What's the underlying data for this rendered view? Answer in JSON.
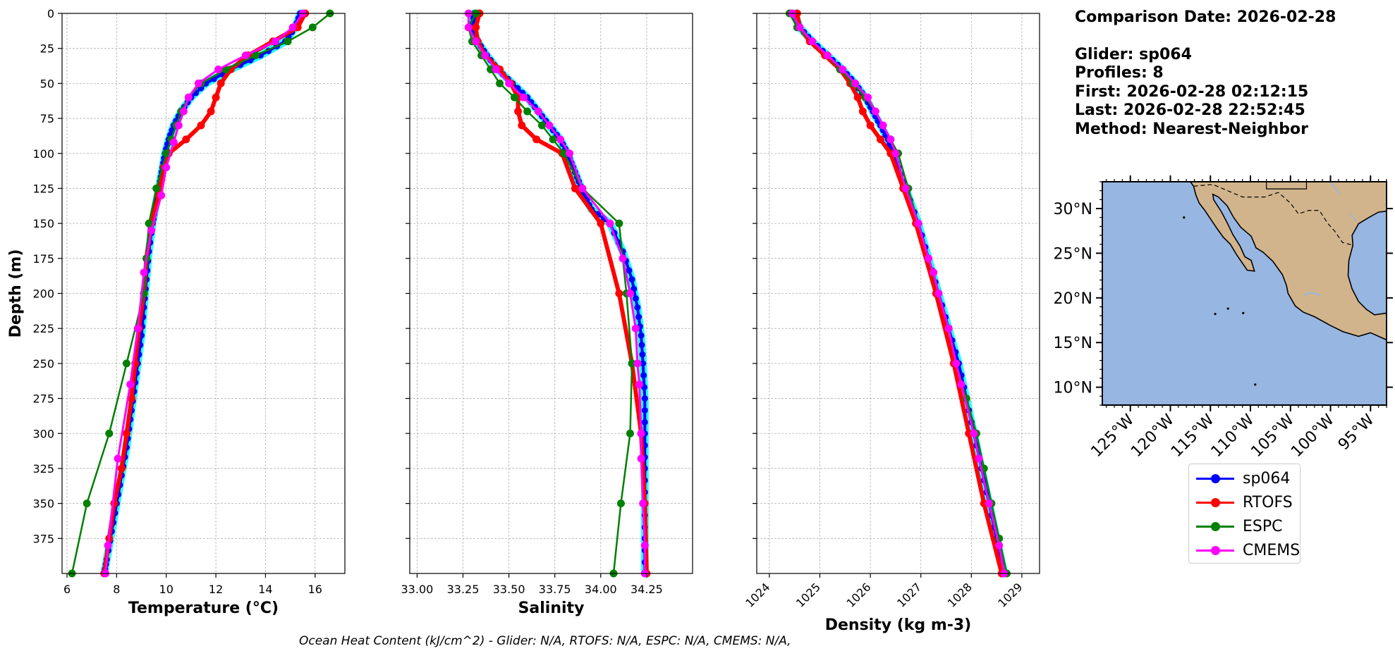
{
  "colors": {
    "sp064": "#0000ff",
    "sp064_light": "#00ffff",
    "RTOFS": "#ff0000",
    "ESPC": "#008000",
    "CMEMS": "#ff00ff",
    "land": "#d2b48c",
    "ocean": "#97b6e1",
    "grid": "#b0b0b0"
  },
  "info": {
    "comparison_date": "Comparison Date: 2026-02-28",
    "glider": "Glider: sp064",
    "profiles": "Profiles: 8",
    "first": "First: 2026-02-28 02:12:15",
    "last": "Last: 2026-02-28 22:52:45",
    "method": "Method: Nearest-Neighbor"
  },
  "legend": [
    {
      "label": "sp064",
      "color_key": "sp064"
    },
    {
      "label": "RTOFS",
      "color_key": "RTOFS"
    },
    {
      "label": "ESPC",
      "color_key": "ESPC"
    },
    {
      "label": "CMEMS",
      "color_key": "CMEMS"
    }
  ],
  "footer": "Ocean Heat Content (kJ/cm^2) - Glider: N/A,  RTOFS: N/A,  ESPC: N/A,  CMEMS: N/A,",
  "map": {
    "lat_ticks": [
      "30°N",
      "25°N",
      "20°N",
      "15°N",
      "10°N"
    ],
    "lon_ticks": [
      "125°W",
      "120°W",
      "115°W",
      "110°W",
      "105°W",
      "100°W",
      "95°W"
    ]
  },
  "chart_data": [
    {
      "type": "line",
      "id": "temperature",
      "xlabel": "Temperature (°C)",
      "ylabel": "Depth (m)",
      "xlim": [
        5.8,
        17.2
      ],
      "ylim": [
        400,
        0
      ],
      "xticks": [
        6,
        8,
        10,
        12,
        14,
        16
      ],
      "yticks": [
        0,
        25,
        50,
        75,
        100,
        125,
        150,
        175,
        200,
        225,
        250,
        275,
        300,
        325,
        350,
        375
      ],
      "series": [
        {
          "name": "sp064",
          "depth": [
            0,
            10,
            20,
            30,
            40,
            50,
            60,
            70,
            80,
            90,
            100,
            110,
            120,
            130,
            140,
            150,
            170,
            190,
            210,
            230,
            250,
            270,
            290,
            310,
            330,
            350,
            370,
            390,
            400
          ],
          "values": [
            15.4,
            15.2,
            14.8,
            13.8,
            12.6,
            11.6,
            11.0,
            10.6,
            10.3,
            10.1,
            9.95,
            9.85,
            9.75,
            9.65,
            9.55,
            9.45,
            9.3,
            9.2,
            9.1,
            9.0,
            8.85,
            8.7,
            8.55,
            8.4,
            8.2,
            8.0,
            7.8,
            7.6,
            7.5
          ]
        },
        {
          "name": "RTOFS",
          "depth": [
            0,
            10,
            20,
            30,
            40,
            50,
            60,
            70,
            80,
            90,
            100,
            110,
            130,
            150,
            175,
            200,
            225,
            250,
            275,
            300,
            325,
            350,
            375,
            400
          ],
          "values": [
            15.6,
            15.3,
            14.3,
            13.3,
            12.6,
            12.2,
            12.0,
            11.8,
            11.4,
            10.8,
            10.1,
            9.9,
            9.7,
            9.4,
            9.2,
            9.1,
            8.9,
            8.75,
            8.6,
            8.4,
            8.2,
            7.9,
            7.7,
            7.5
          ]
        },
        {
          "name": "ESPC",
          "depth": [
            0,
            10,
            20,
            30,
            40,
            50,
            60,
            70,
            80,
            90,
            100,
            125,
            150,
            175,
            200,
            250,
            300,
            350,
            400
          ],
          "values": [
            16.6,
            15.9,
            14.9,
            13.6,
            12.4,
            11.4,
            10.9,
            10.6,
            10.4,
            10.2,
            10.0,
            9.6,
            9.3,
            9.2,
            9.1,
            8.4,
            7.7,
            6.8,
            6.2
          ]
        },
        {
          "name": "CMEMS",
          "depth": [
            0,
            10,
            20,
            30,
            40,
            50,
            60,
            70,
            80,
            92,
            110,
            130,
            155,
            185,
            225,
            265,
            318,
            380,
            400
          ],
          "values": [
            15.5,
            15.1,
            14.4,
            13.2,
            12.1,
            11.3,
            10.9,
            10.7,
            10.5,
            10.3,
            10.0,
            9.8,
            9.4,
            9.1,
            8.85,
            8.55,
            8.05,
            7.65,
            7.55
          ]
        }
      ]
    },
    {
      "type": "line",
      "id": "salinity",
      "xlabel": "Salinity",
      "xlim": [
        32.96,
        34.5
      ],
      "ylim": [
        400,
        0
      ],
      "xticks": [
        33.0,
        33.25,
        33.5,
        33.75,
        34.0,
        34.25
      ],
      "xtick_labels": [
        "33.00",
        "33.25",
        "33.50",
        "33.75",
        "34.00",
        "34.25"
      ],
      "series": [
        {
          "name": "sp064",
          "depth": [
            0,
            10,
            20,
            30,
            40,
            50,
            60,
            70,
            80,
            90,
            100,
            110,
            120,
            130,
            140,
            150,
            170,
            190,
            210,
            230,
            250,
            275,
            300,
            325,
            350,
            375,
            400
          ],
          "values": [
            33.31,
            33.3,
            33.33,
            33.38,
            33.44,
            33.52,
            33.6,
            33.66,
            33.72,
            33.78,
            33.82,
            33.85,
            33.88,
            33.91,
            33.95,
            34.05,
            34.12,
            34.17,
            34.2,
            34.22,
            34.23,
            34.24,
            34.24,
            34.24,
            34.24,
            34.24,
            34.24
          ]
        },
        {
          "name": "RTOFS",
          "depth": [
            0,
            10,
            20,
            30,
            40,
            50,
            60,
            70,
            80,
            90,
            100,
            125,
            150,
            200,
            250,
            300,
            350,
            400
          ],
          "values": [
            33.34,
            33.32,
            33.33,
            33.37,
            33.45,
            33.51,
            33.55,
            33.55,
            33.57,
            33.65,
            33.79,
            33.86,
            34.0,
            34.1,
            34.17,
            34.22,
            34.24,
            34.25
          ]
        },
        {
          "name": "ESPC",
          "depth": [
            0,
            10,
            20,
            30,
            40,
            50,
            60,
            70,
            80,
            90,
            100,
            125,
            150,
            200,
            250,
            300,
            350,
            400
          ],
          "values": [
            33.32,
            33.28,
            33.3,
            33.35,
            33.4,
            33.45,
            33.53,
            33.6,
            33.68,
            33.74,
            33.8,
            33.9,
            34.1,
            34.14,
            34.17,
            34.16,
            34.11,
            34.07
          ]
        },
        {
          "name": "CMEMS",
          "depth": [
            0,
            10,
            20,
            30,
            40,
            50,
            60,
            70,
            80,
            90,
            100,
            125,
            150,
            175,
            200,
            225,
            250,
            265,
            300,
            318,
            350,
            380,
            400
          ],
          "values": [
            33.28,
            33.28,
            33.32,
            33.37,
            33.43,
            33.5,
            33.58,
            33.66,
            33.72,
            33.78,
            33.83,
            33.9,
            34.05,
            34.12,
            34.16,
            34.19,
            34.2,
            34.21,
            34.22,
            34.22,
            34.23,
            34.24,
            34.24
          ]
        }
      ]
    },
    {
      "type": "line",
      "id": "density",
      "xlabel": "Density (kg m-3)",
      "xlim": [
        1023.75,
        1029.35
      ],
      "ylim": [
        400,
        0
      ],
      "xticks": [
        1024,
        1025,
        1026,
        1027,
        1028,
        1029
      ],
      "series": [
        {
          "name": "sp064",
          "depth": [
            0,
            10,
            20,
            30,
            40,
            50,
            60,
            70,
            80,
            90,
            100,
            110,
            125,
            150,
            175,
            200,
            225,
            250,
            275,
            300,
            325,
            350,
            375,
            400
          ],
          "values": [
            1024.5,
            1024.6,
            1024.85,
            1025.15,
            1025.45,
            1025.7,
            1025.9,
            1026.05,
            1026.2,
            1026.35,
            1026.45,
            1026.55,
            1026.7,
            1026.95,
            1027.15,
            1027.35,
            1027.55,
            1027.75,
            1027.9,
            1028.05,
            1028.2,
            1028.35,
            1028.5,
            1028.65
          ]
        },
        {
          "name": "RTOFS",
          "depth": [
            0,
            10,
            20,
            30,
            40,
            50,
            60,
            70,
            80,
            90,
            100,
            125,
            150,
            200,
            250,
            300,
            350,
            400
          ],
          "values": [
            1024.55,
            1024.6,
            1024.8,
            1025.1,
            1025.4,
            1025.6,
            1025.75,
            1025.85,
            1026.0,
            1026.2,
            1026.4,
            1026.65,
            1026.9,
            1027.3,
            1027.65,
            1027.95,
            1028.25,
            1028.6
          ]
        },
        {
          "name": "ESPC",
          "depth": [
            0,
            10,
            20,
            30,
            40,
            50,
            60,
            70,
            80,
            90,
            100,
            125,
            150,
            175,
            200,
            225,
            250,
            275,
            300,
            325,
            350,
            375,
            400
          ],
          "values": [
            1024.4,
            1024.55,
            1024.85,
            1025.15,
            1025.4,
            1025.65,
            1025.9,
            1026.1,
            1026.25,
            1026.4,
            1026.55,
            1026.75,
            1026.95,
            1027.15,
            1027.35,
            1027.55,
            1027.7,
            1027.9,
            1028.1,
            1028.25,
            1028.4,
            1028.55,
            1028.7
          ]
        },
        {
          "name": "CMEMS",
          "depth": [
            0,
            10,
            20,
            30,
            40,
            50,
            60,
            70,
            80,
            90,
            100,
            125,
            150,
            175,
            185,
            200,
            225,
            250,
            265,
            300,
            318,
            350,
            380,
            400
          ],
          "values": [
            1024.45,
            1024.6,
            1024.85,
            1025.15,
            1025.45,
            1025.7,
            1025.95,
            1026.1,
            1026.25,
            1026.4,
            1026.5,
            1026.7,
            1026.95,
            1027.15,
            1027.25,
            1027.35,
            1027.55,
            1027.7,
            1027.8,
            1028.05,
            1028.15,
            1028.35,
            1028.55,
            1028.65
          ]
        }
      ]
    }
  ]
}
